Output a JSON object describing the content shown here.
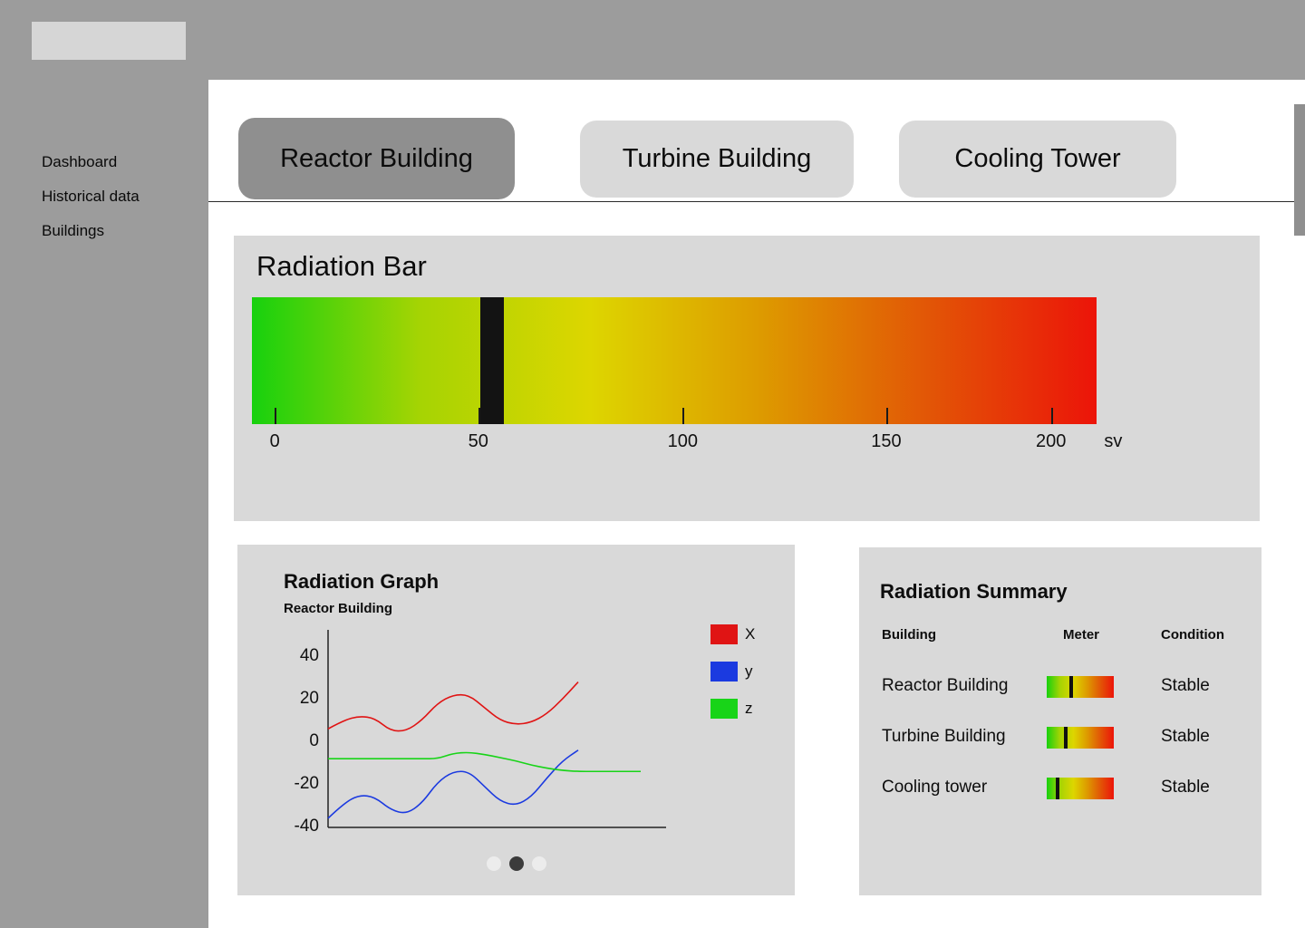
{
  "sidebar": {
    "items": [
      {
        "label": "Dashboard"
      },
      {
        "label": "Historical data"
      },
      {
        "label": "Buildings"
      }
    ]
  },
  "tabs": {
    "items": [
      {
        "label": "Reactor Building"
      },
      {
        "label": "Turbine Building"
      },
      {
        "label": "Cooling Tower"
      }
    ],
    "active_index": 0
  },
  "radiation_bar": {
    "title": "Radiation Bar",
    "unit": "sv",
    "ticks": [
      0,
      50,
      100,
      150,
      200
    ],
    "value_sv": 56,
    "scale_max": 200
  },
  "carousel": {
    "count": 3,
    "active_index": 1
  },
  "summary": {
    "title": "Radiation Summary",
    "columns": [
      "Building",
      "Meter",
      "Condition"
    ],
    "rows": [
      {
        "building": "Reactor Building",
        "level_percent": 34,
        "condition": "Stable"
      },
      {
        "building": "Turbine Building",
        "level_percent": 26,
        "condition": "Stable"
      },
      {
        "building": "Cooling tower",
        "level_percent": 13,
        "condition": "Stable"
      }
    ]
  },
  "chart_data": {
    "type": "line",
    "title": "Radiation Graph",
    "subtitle": "Reactor Building",
    "x": [
      0,
      1,
      2,
      3,
      4,
      5,
      6,
      7,
      8,
      9,
      10,
      11,
      12,
      13,
      14,
      15,
      16
    ],
    "series": [
      {
        "name": "X",
        "color": "#e01414",
        "values": [
          5,
          9,
          11,
          10,
          4,
          4,
          9,
          17,
          21,
          21,
          15,
          9,
          7,
          8,
          12,
          19,
          27
        ]
      },
      {
        "name": "y",
        "color": "#1b3ae0",
        "values": [
          -37,
          -30,
          -26,
          -27,
          -33,
          -35,
          -30,
          -20,
          -15,
          -15,
          -22,
          -29,
          -31,
          -27,
          -18,
          -10,
          -5
        ]
      },
      {
        "name": "z",
        "color": "#18d418",
        "x": [
          0,
          1,
          2,
          3,
          4,
          5,
          6,
          7,
          8,
          9,
          10,
          11,
          12,
          13,
          14,
          15,
          16,
          17,
          18,
          19,
          20
        ],
        "values": [
          -9,
          -9,
          -9,
          -9,
          -9,
          -9,
          -9,
          -9,
          -6.5,
          -6,
          -7,
          -8.5,
          -10,
          -12,
          -13.5,
          -14.5,
          -15,
          -15,
          -15,
          -15,
          -15
        ]
      }
    ],
    "yticks": [
      40,
      20,
      0,
      -20,
      -40
    ],
    "ylim": [
      -45,
      50
    ],
    "legend_position": "top-right",
    "grid": false
  },
  "colors": {
    "radiation_gradient": [
      "#17d10e",
      "#a6d403",
      "#ddd600",
      "#dd9b00",
      "#e25606",
      "#ec1409"
    ],
    "panel": "#d9d9d9",
    "chrome_gray": "#9c9c9c",
    "tab_active": "#8f8f8f"
  }
}
